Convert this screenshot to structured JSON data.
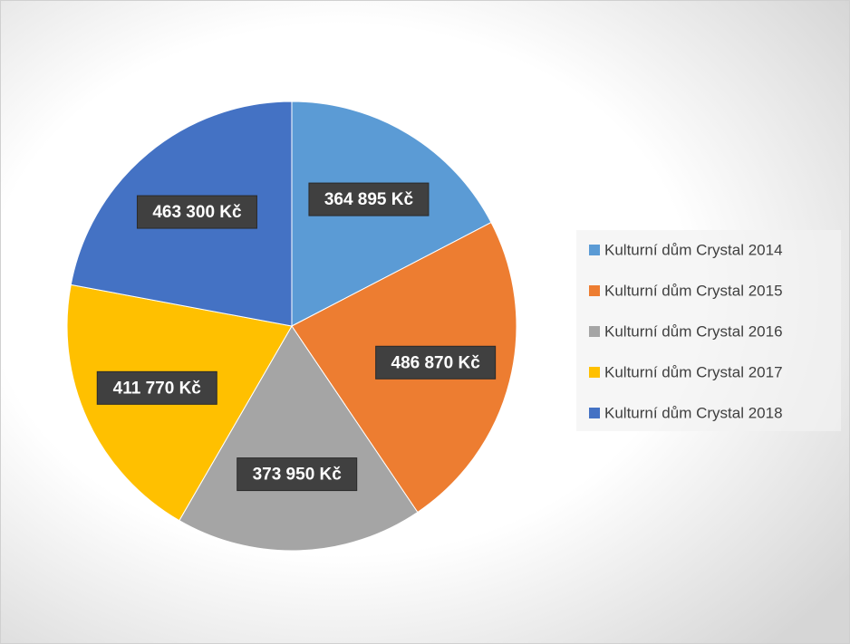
{
  "chart_data": {
    "type": "pie",
    "categories": [
      "Kulturní dům Crystal 2014",
      "Kulturní dům Crystal 2015",
      "Kulturní dům Crystal 2016",
      "Kulturní dům Crystal 2017",
      "Kulturní dům Crystal 2018"
    ],
    "values": [
      364895,
      486870,
      373950,
      411770,
      463300
    ],
    "value_labels": [
      "364 895 Kč",
      "486 870 Kč",
      "373 950 Kč",
      "411 770 Kč",
      "463 300 Kč"
    ],
    "colors": [
      "#5b9bd5",
      "#ed7d31",
      "#a5a5a5",
      "#ffc000",
      "#4472c4"
    ],
    "legend": "right"
  }
}
